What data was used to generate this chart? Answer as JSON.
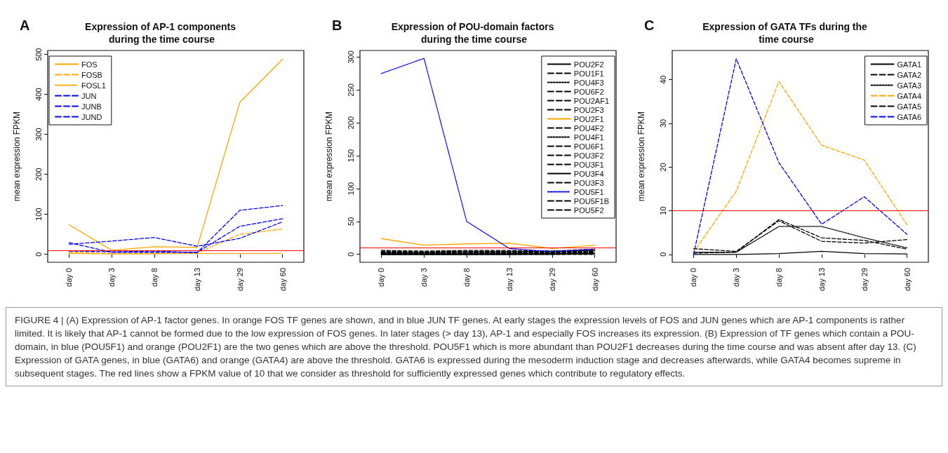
{
  "chart_data": [
    {
      "type": "line",
      "title": "Expression of AP-1 components during the time course",
      "ylabel": "mean expression FPKM",
      "annotations": [
        "A",
        "FIGURE 4 | (A) Expression of AP-1 factor genes. In orange FOS TF genes are shown, and in blue JUN TF genes. At early stages the expression levels of FOS and JUN genes which are AP-1 components is rather limited. It is likely that AP-1 cannot be formed due to the low expression of FOS genes. In later stages (> day 13), AP-1 and especially FOS increases its expression. (B) Expression of TF genes which contain a POU-domain, in blue (POU5F1) and orange (POU2F1) are the two genes which are above the threshold. POU5F1 which is more abundant than POU2F1 decreases during the time course and was absent after day 13. (C) Expression of GATA genes, in blue (GATA6) and orange (GATA4) are above the threshold. GATA6 is expressed during the mesoderm induction stage and decreases afterwards, while GATA4 becomes supreme in subsequent stages. The red lines show a FPKM value of 10 that we consider as threshold for sufficiently expressed genes which contribute to regulatory effects."
      ],
      "categories": [
        "day 0",
        "day 3",
        "day 8",
        "day 13",
        "day 29",
        "day 60"
      ],
      "ylim": [
        -20,
        510
      ],
      "yticks": [
        0,
        100,
        200,
        300,
        400,
        500
      ],
      "grid": false,
      "legend": "top left",
      "marker": "none",
      "ref_lines": [
        {
          "axis": "y",
          "value": 10,
          "color": "#ff0000"
        }
      ],
      "series": [
        {
          "name": "FOS",
          "color": "#ffa500",
          "line_style": "solid",
          "values": [
            74,
            10,
            19,
            17,
            380,
            488
          ]
        },
        {
          "name": "FOSB",
          "color": "#ffa500",
          "line_style": "dashed",
          "values": [
            5,
            1,
            2,
            3,
            50,
            63
          ]
        },
        {
          "name": "FOSL1",
          "color": "#ffa500",
          "line_style": "dotted",
          "values": [
            2,
            1,
            1,
            2,
            2,
            2
          ]
        },
        {
          "name": "JUN",
          "color": "#0000ff",
          "line_style": "dashed",
          "values": [
            29,
            5,
            5,
            5,
            70,
            89
          ]
        },
        {
          "name": "JUNB",
          "color": "#0000ff",
          "line_style": "dashed",
          "values": [
            8,
            6,
            8,
            4,
            110,
            122
          ]
        },
        {
          "name": "JUND",
          "color": "#0000ff",
          "line_style": "dashed",
          "values": [
            25,
            33,
            42,
            20,
            40,
            81
          ]
        }
      ]
    },
    {
      "type": "line",
      "title": "Expression of POU-domain factors during the time course",
      "ylabel": "mean expression FPKM",
      "annotations": [
        "B"
      ],
      "categories": [
        "day 0",
        "day 3",
        "day 8",
        "day 13",
        "day 29",
        "day 60"
      ],
      "ylim": [
        -12,
        310
      ],
      "yticks": [
        0,
        50,
        100,
        150,
        200,
        250,
        300
      ],
      "grid": false,
      "legend": "top right",
      "marker": "none",
      "ref_lines": [
        {
          "axis": "y",
          "value": 10,
          "color": "#ff0000"
        }
      ],
      "series": [
        {
          "name": "POU2F2",
          "color": "#000000",
          "line_style": "solid",
          "values": [
            1,
            1,
            1,
            1,
            1,
            2
          ]
        },
        {
          "name": "POU1F1",
          "color": "#000000",
          "line_style": "dashed",
          "values": [
            4,
            3,
            3,
            3,
            3,
            5
          ]
        },
        {
          "name": "POU4F3",
          "color": "#000000",
          "line_style": "dotted",
          "values": [
            0,
            0,
            0,
            0,
            0,
            1
          ]
        },
        {
          "name": "POU6F2",
          "color": "#000000",
          "line_style": "dashed",
          "values": [
            5,
            4,
            5,
            5,
            4,
            6
          ]
        },
        {
          "name": "POU2AF1",
          "color": "#000000",
          "line_style": "dashed",
          "values": [
            1,
            1,
            1,
            2,
            3,
            4
          ]
        },
        {
          "name": "POU2F3",
          "color": "#000000",
          "line_style": "dashed",
          "values": [
            2,
            2,
            2,
            2,
            2,
            3
          ]
        },
        {
          "name": "POU2F1",
          "color": "#ffa500",
          "line_style": "solid",
          "values": [
            24,
            14,
            16,
            17,
            9,
            14
          ]
        },
        {
          "name": "POU4F2",
          "color": "#000000",
          "line_style": "dashed",
          "values": [
            0,
            0,
            0,
            1,
            1,
            1
          ]
        },
        {
          "name": "POU4F1",
          "color": "#000000",
          "line_style": "dotted",
          "values": [
            3,
            3,
            4,
            4,
            5,
            6
          ]
        },
        {
          "name": "POU6F1",
          "color": "#000000",
          "line_style": "dashed",
          "values": [
            6,
            5,
            6,
            6,
            5,
            8
          ]
        },
        {
          "name": "POU3F2",
          "color": "#000000",
          "line_style": "dashed",
          "values": [
            1,
            1,
            1,
            1,
            2,
            3
          ]
        },
        {
          "name": "POU3F1",
          "color": "#000000",
          "line_style": "dashed",
          "values": [
            3,
            2,
            2,
            3,
            3,
            4
          ]
        },
        {
          "name": "POU3F4",
          "color": "#000000",
          "line_style": "solid",
          "values": [
            0,
            0,
            0,
            0,
            1,
            1
          ]
        },
        {
          "name": "POU3F3",
          "color": "#000000",
          "line_style": "dashed",
          "values": [
            2,
            2,
            3,
            3,
            4,
            6
          ]
        },
        {
          "name": "POU5F1",
          "color": "#0000ff",
          "line_style": "dotted",
          "values": [
            275,
            298,
            50,
            9,
            4,
            8
          ]
        },
        {
          "name": "POU5F1B",
          "color": "#000000",
          "line_style": "dashed",
          "values": [
            2,
            1,
            2,
            2,
            3,
            5
          ]
        },
        {
          "name": "POU5F2",
          "color": "#000000",
          "line_style": "dashed",
          "values": [
            0,
            0,
            0,
            0,
            0,
            0
          ]
        }
      ]
    },
    {
      "type": "line",
      "title": "Expression of GATA TFs during the time course",
      "ylabel": "mean expression FPKM",
      "annotations": [
        "C"
      ],
      "categories": [
        "day 0",
        "day 3",
        "day 8",
        "day 13",
        "day 29",
        "day 60"
      ],
      "ylim": [
        -1.8,
        46.7
      ],
      "yticks": [
        0,
        10,
        20,
        30,
        40
      ],
      "grid": false,
      "legend": "top right",
      "marker": "none",
      "ref_lines": [
        {
          "axis": "y",
          "value": 10,
          "color": "#ff0000"
        }
      ],
      "series": [
        {
          "name": "GATA1",
          "color": "#000000",
          "line_style": "solid",
          "values": [
            0,
            0,
            0.2,
            0.7,
            0.2,
            0.1
          ]
        },
        {
          "name": "GATA2",
          "color": "#000000",
          "line_style": "dashed",
          "values": [
            1.3,
            0.7,
            7.7,
            3,
            2.6,
            3.4
          ]
        },
        {
          "name": "GATA3",
          "color": "#000000",
          "line_style": "dotted",
          "values": [
            0.5,
            0.5,
            6.4,
            6.4,
            3.8,
            1.5
          ]
        },
        {
          "name": "GATA4",
          "color": "#ffa500",
          "line_style": "dashed",
          "values": [
            0.5,
            14.5,
            39.6,
            25,
            21.6,
            6.8
          ]
        },
        {
          "name": "GATA5",
          "color": "#000000",
          "line_style": "dashed",
          "values": [
            0.3,
            0.5,
            8,
            3.8,
            3.2,
            1.2
          ]
        },
        {
          "name": "GATA6",
          "color": "#0000ff",
          "line_style": "dashed",
          "values": [
            0,
            44.8,
            21,
            6.9,
            13.2,
            4.6
          ]
        }
      ]
    }
  ]
}
